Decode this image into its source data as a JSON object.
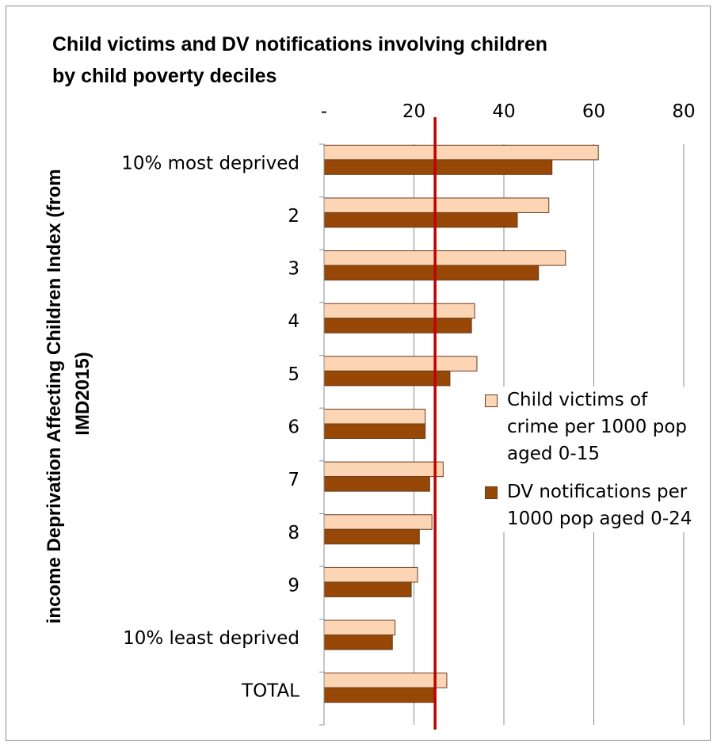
{
  "chart_data": {
    "type": "bar",
    "orientation": "horizontal",
    "title_lines": [
      "Child victims and DV notifications involving children",
      "by child poverty deciles"
    ],
    "ylabel_lines": [
      "income Deprivation Affecting Children Index (from",
      "IMD2015)"
    ],
    "xlabel": "",
    "x_axis_position": "top",
    "xlim": [
      0,
      80
    ],
    "x_ticks": [
      0,
      20,
      40,
      60,
      80
    ],
    "x_tick_labels": [
      "-",
      "20",
      "40",
      "60",
      "80"
    ],
    "grid": true,
    "legend_position": "right",
    "reference_line": {
      "value": 24.7,
      "color": "#c00000"
    },
    "categories": [
      "10% most deprived",
      "2",
      "3",
      "4",
      "5",
      "6",
      "7",
      "8",
      "9",
      "10% least deprived",
      "TOTAL"
    ],
    "series": [
      {
        "name": "Child victims of crime per 1000 pop aged 0-15",
        "name_lines": [
          "Child victims of",
          "crime per 1000 pop",
          "aged 0-15"
        ],
        "color": "#fcd5b4",
        "values": [
          61,
          50,
          53.7,
          33.5,
          34,
          22.5,
          26.5,
          24,
          20.8,
          15.8,
          27.3
        ]
      },
      {
        "name": "DV notifications per 1000 pop aged 0-24",
        "name_lines": [
          "DV notifications per",
          "1000 pop aged 0-24"
        ],
        "color": "#974806",
        "values": [
          50.7,
          43,
          47.7,
          32.8,
          28,
          22.5,
          23.5,
          21.2,
          19.4,
          15.2,
          24.7
        ]
      }
    ]
  }
}
